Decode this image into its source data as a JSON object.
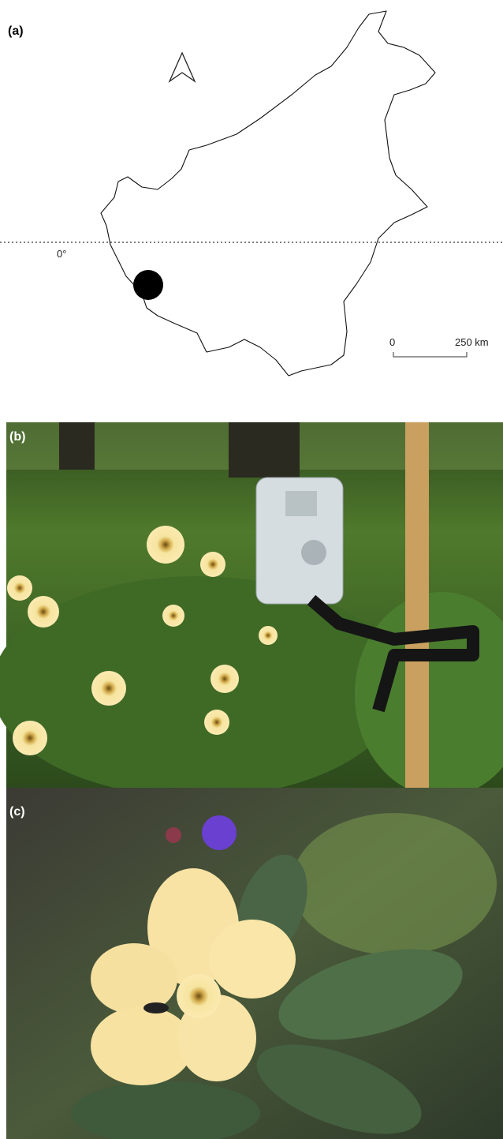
{
  "panels": [
    {
      "label": "(a)",
      "equator_label": "0°",
      "scale_start": "0",
      "scale_end": "250 km"
    },
    {
      "label": "(b)"
    },
    {
      "label": "(c)"
    }
  ]
}
